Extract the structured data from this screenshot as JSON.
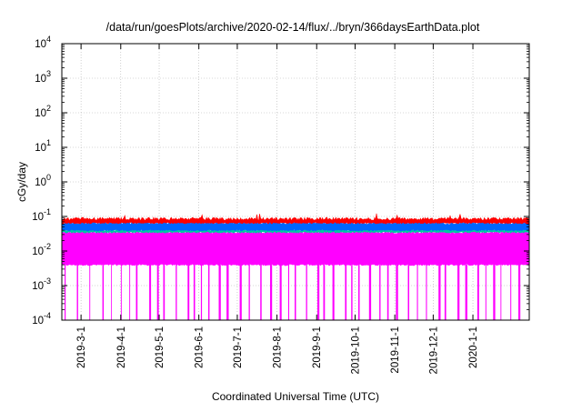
{
  "chart_data": {
    "type": "area",
    "title": "/data/run/goesPlots/archive/2020-02-14/flux/../bryn/366daysEarthData.plot",
    "xlabel": "Coordinated Universal Time (UTC)",
    "ylabel": "cGy/day",
    "y_scale": "log",
    "ylim": [
      0.0001,
      10000
    ],
    "xlim": [
      "2019-02-14",
      "2020-02-14"
    ],
    "grid": true,
    "y_ticks": [
      {
        "base": "10",
        "exp": "-4",
        "value": 0.0001
      },
      {
        "base": "10",
        "exp": "-3",
        "value": 0.001
      },
      {
        "base": "10",
        "exp": "-2",
        "value": 0.01
      },
      {
        "base": "10",
        "exp": "-1",
        "value": 0.1
      },
      {
        "base": "10",
        "exp": "0",
        "value": 1
      },
      {
        "base": "10",
        "exp": "1",
        "value": 10
      },
      {
        "base": "10",
        "exp": "2",
        "value": 100
      },
      {
        "base": "10",
        "exp": "3",
        "value": 1000
      },
      {
        "base": "10",
        "exp": "4",
        "value": 10000
      }
    ],
    "x_ticks": [
      "2019-3-1",
      "2019-4-1",
      "2019-5-1",
      "2019-6-1",
      "2019-7-1",
      "2019-8-1",
      "2019-9-1",
      "2019-10-1",
      "2019-11-1",
      "2019-12-1",
      "2020-1-1"
    ],
    "series": [
      {
        "color": "#ff0000",
        "typical_max": 0.085,
        "typical_min": 0.065
      },
      {
        "color": "#0066ff",
        "typical_max": 0.065,
        "typical_min": 0.04
      },
      {
        "color": "#00c8a0",
        "typical_max": 0.042,
        "typical_min": 0.035
      },
      {
        "color": "#ff00ff",
        "typical_max": 0.035,
        "typical_min": 0.004,
        "dropout_min": 0.0001
      }
    ]
  }
}
